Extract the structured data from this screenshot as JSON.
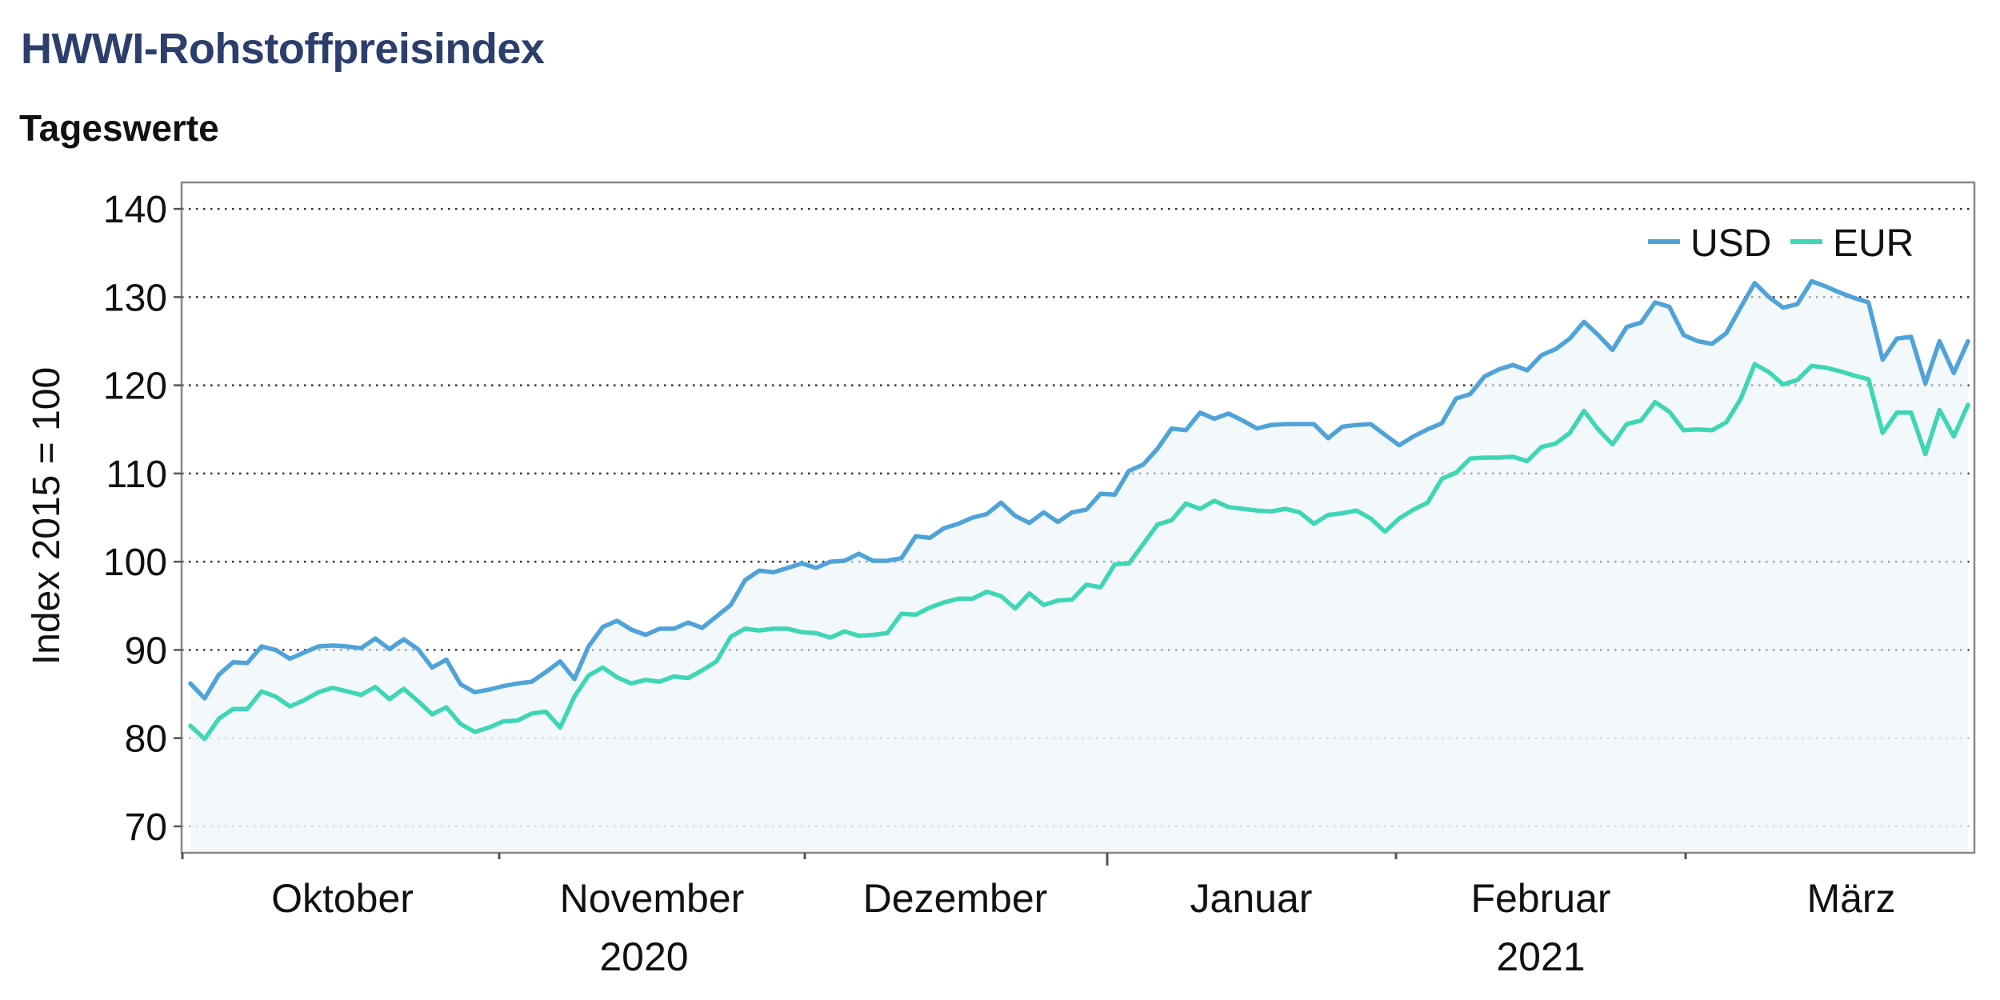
{
  "header": {
    "title": "HWWI-Rohstoffpreisindex",
    "subtitle": "Tageswerte"
  },
  "chart_data": {
    "type": "area",
    "title": "HWWI-Rohstoffpreisindex",
    "subtitle": "Tageswerte",
    "ylabel": "Index 2015 = 100",
    "xlabel": "",
    "ylim": [
      67,
      143
    ],
    "yticks": [
      70,
      80,
      90,
      100,
      110,
      120,
      130,
      140
    ],
    "grid": "horizontal dotted",
    "legend": "top-right",
    "month_labels": [
      "Oktober",
      "November",
      "Dezember",
      "Januar",
      "Februar",
      "März"
    ],
    "year_labels": [
      "2020",
      "2021"
    ],
    "series": [
      {
        "name": "USD",
        "color": "#4fa3d9",
        "values": [
          86.2,
          84.5,
          87.2,
          88.6,
          88.5,
          90.4,
          90.0,
          89.0,
          89.7,
          90.4,
          90.5,
          90.4,
          90.2,
          91.3,
          90.1,
          91.2,
          90.1,
          88.0,
          88.9,
          86.1,
          85.2,
          85.5,
          85.9,
          86.2,
          86.4,
          87.5,
          88.7,
          86.7,
          90.4,
          92.6,
          93.3,
          92.3,
          91.7,
          92.4,
          92.4,
          93.1,
          92.5,
          93.8,
          95.1,
          97.9,
          99.0,
          98.8,
          99.3,
          99.8,
          99.3,
          100.0,
          100.1,
          100.9,
          100.1,
          100.1,
          100.4,
          102.9,
          102.7,
          103.8,
          104.3,
          105.0,
          105.4,
          106.7,
          105.2,
          104.4,
          105.6,
          104.5,
          105.6,
          105.9,
          107.7,
          107.6,
          110.3,
          111.0,
          112.8,
          115.1,
          114.9,
          116.9,
          116.2,
          116.8,
          116.0,
          115.1,
          115.5,
          115.6,
          115.6,
          115.6,
          114.0,
          115.3,
          115.5,
          115.6,
          114.4,
          113.2,
          114.2,
          115.0,
          115.7,
          118.5,
          119.0,
          121.0,
          121.8,
          122.3,
          121.7,
          123.4,
          124.1,
          125.3,
          127.2,
          125.7,
          124.0,
          126.6,
          127.1,
          129.4,
          128.9,
          125.7,
          125.0,
          124.7,
          125.9,
          128.8,
          131.6,
          130.0,
          128.8,
          129.2,
          131.8,
          131.2,
          130.5,
          129.9,
          129.4,
          122.9,
          125.3,
          125.5,
          120.2,
          125.0,
          121.4,
          125.0
        ]
      },
      {
        "name": "EUR",
        "color": "#3ed6b5",
        "values": [
          81.4,
          79.9,
          82.2,
          83.3,
          83.3,
          85.3,
          84.7,
          83.6,
          84.3,
          85.2,
          85.7,
          85.3,
          84.9,
          85.8,
          84.4,
          85.6,
          84.2,
          82.7,
          83.5,
          81.6,
          80.7,
          81.2,
          81.9,
          82.0,
          82.8,
          83.0,
          81.2,
          84.7,
          87.1,
          88.0,
          86.9,
          86.2,
          86.6,
          86.4,
          87.0,
          86.8,
          87.7,
          88.7,
          91.5,
          92.4,
          92.2,
          92.4,
          92.4,
          92.0,
          91.9,
          91.4,
          92.1,
          91.6,
          91.7,
          91.9,
          94.1,
          94.0,
          94.8,
          95.4,
          95.8,
          95.8,
          96.6,
          96.1,
          94.7,
          96.4,
          95.1,
          95.6,
          95.7,
          97.4,
          97.1,
          99.7,
          99.8,
          102.0,
          104.2,
          104.7,
          106.6,
          106.0,
          106.9,
          106.2,
          106.0,
          105.8,
          105.7,
          106.0,
          105.6,
          104.3,
          105.3,
          105.5,
          105.8,
          104.9,
          103.4,
          104.9,
          105.9,
          106.7,
          109.4,
          110.1,
          111.7,
          111.8,
          111.8,
          111.9,
          111.4,
          113.0,
          113.4,
          114.6,
          117.1,
          115.0,
          113.3,
          115.6,
          116.0,
          118.1,
          117.0,
          114.9,
          115.0,
          114.9,
          115.8,
          118.4,
          122.4,
          121.5,
          120.1,
          120.6,
          122.2,
          122.0,
          121.6,
          121.1,
          120.7,
          114.6,
          116.9,
          116.9,
          112.2,
          117.2,
          114.2,
          117.8
        ]
      }
    ]
  }
}
